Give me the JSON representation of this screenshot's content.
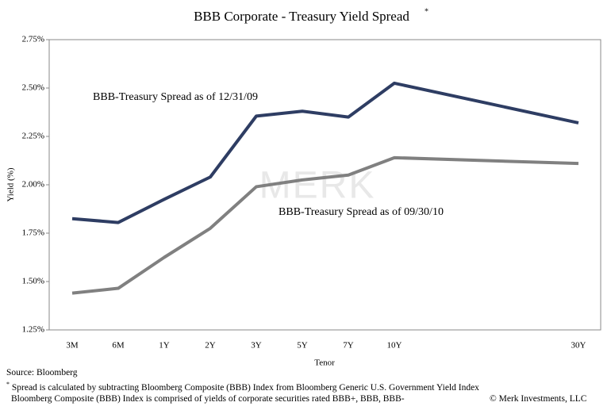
{
  "chart_data": {
    "type": "line",
    "title": "BBB Corporate - Treasury Yield Spread",
    "title_marker": "*",
    "x_label": "Tenor",
    "y_label": "Yield (%)",
    "watermark": "MERK",
    "categories": [
      "3M",
      "6M",
      "1Y",
      "2Y",
      "3Y",
      "5Y",
      "7Y",
      "10Y",
      "30Y"
    ],
    "series": [
      {
        "name": "BBB-Treasury Spread as of 12/31/09",
        "color": "#2e3d63",
        "values": [
          1.825,
          1.805,
          1.925,
          2.04,
          2.355,
          2.38,
          2.35,
          2.525,
          2.32
        ]
      },
      {
        "name": "BBB-Treasury Spread as of 09/30/10",
        "color": "#808080",
        "values": [
          1.44,
          1.465,
          1.625,
          1.775,
          1.99,
          2.025,
          2.05,
          2.14,
          2.11
        ]
      }
    ],
    "ylim": [
      1.25,
      2.75
    ],
    "yticks": [
      {
        "value": 1.25,
        "label": "1.25%"
      },
      {
        "value": 1.5,
        "label": "1.50%"
      },
      {
        "value": 1.75,
        "label": "1.75%"
      },
      {
        "value": 2.0,
        "label": "2.00%"
      },
      {
        "value": 2.25,
        "label": "2.25%"
      },
      {
        "value": 2.5,
        "label": "2.50%"
      },
      {
        "value": 2.75,
        "label": "2.75%"
      }
    ],
    "grid": false,
    "source": "Source: Bloomberg",
    "footnote_marker": "*",
    "footnote": "Spread is calculated by subtracting Bloomberg Composite (BBB) Index from Bloomberg Generic U.S. Government Yield Index",
    "footnote2": "Bloomberg Composite (BBB) Index is comprised of yields of corporate securities rated BBB+, BBB, BBB-",
    "copyright": "© Merk Investments, LLC"
  }
}
